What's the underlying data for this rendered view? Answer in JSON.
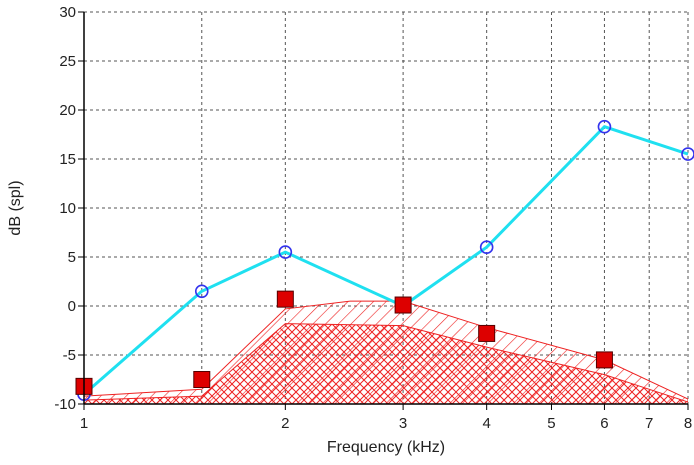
{
  "chart_data": {
    "type": "line",
    "xlabel": "Frequency (kHz)",
    "ylabel": "dB (spl)",
    "x_scale": "log",
    "xlim": [
      1,
      8
    ],
    "ylim": [
      -10,
      30
    ],
    "grid": true,
    "x_ticks": [
      {
        "value": 1,
        "label": "1"
      },
      {
        "value": 2,
        "label": "2"
      },
      {
        "value": 3,
        "label": "3"
      },
      {
        "value": 4,
        "label": "4"
      },
      {
        "value": 5,
        "label": "5"
      },
      {
        "value": 6,
        "label": "6"
      },
      {
        "value": 7,
        "label": "7"
      },
      {
        "value": 8,
        "label": "8"
      }
    ],
    "x_grid_extra": [
      1.5
    ],
    "y_ticks": [
      {
        "value": -10,
        "label": "-10"
      },
      {
        "value": -5,
        "label": "-5"
      },
      {
        "value": 0,
        "label": "0"
      },
      {
        "value": 5,
        "label": "5"
      },
      {
        "value": 10,
        "label": "10"
      },
      {
        "value": 15,
        "label": "15"
      },
      {
        "value": 20,
        "label": "20"
      },
      {
        "value": 25,
        "label": "25"
      },
      {
        "value": 30,
        "label": "30"
      }
    ],
    "series": [
      {
        "marker": "circle",
        "line_color": "#1fe0f0",
        "marker_color": "#3333ee",
        "x": [
          1,
          1.5,
          2,
          3,
          4,
          6,
          8
        ],
        "y": [
          -9,
          1.5,
          5.5,
          0,
          6,
          18.3,
          15.5
        ]
      },
      {
        "marker": "square",
        "marker_color": "#dd0000",
        "x": [
          1,
          1.5,
          2,
          3,
          4,
          6
        ],
        "y": [
          -8.2,
          -7.5,
          0.7,
          0.1,
          -2.8,
          -5.5
        ]
      }
    ],
    "hatched_regions": [
      {
        "pattern": "diagonal",
        "color": "#ee2222",
        "x": [
          1,
          1.5,
          2,
          2.5,
          3,
          4,
          6,
          8,
          8,
          1
        ],
        "y": [
          -9.2,
          -8.5,
          -0.3,
          0.5,
          0.5,
          -2.2,
          -5.5,
          -9.5,
          -10,
          -10
        ]
      },
      {
        "pattern": "crosshatch",
        "color": "#ee2222",
        "x": [
          1,
          1.5,
          2,
          3,
          4,
          6,
          8,
          8,
          1
        ],
        "y": [
          -9.6,
          -9.2,
          -1.8,
          -2,
          -4.2,
          -7,
          -9.8,
          -10,
          -10
        ]
      }
    ]
  }
}
